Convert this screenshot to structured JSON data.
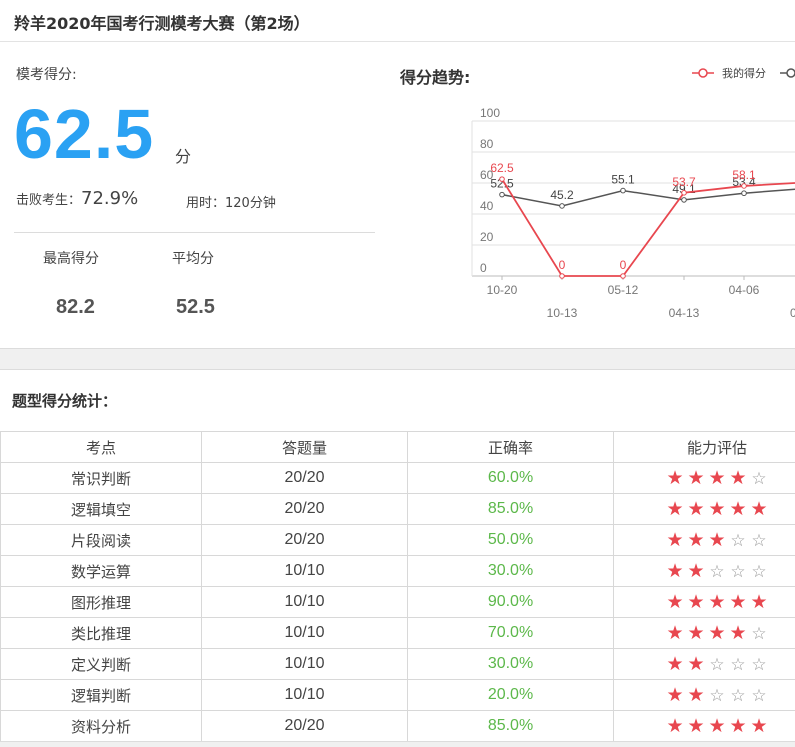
{
  "header": {
    "title": "羚羊2020年国考行测模考大赛（第2场）"
  },
  "score": {
    "label": "模考得分:",
    "value": "62.5",
    "unit": "分",
    "beat_label": "击败考生：",
    "beat_value": "72.9%",
    "time_label": "用时：120分钟"
  },
  "stats": {
    "max_label": "最高得分",
    "max_value": "82.2",
    "avg_label": "平均分",
    "avg_value": "52.5"
  },
  "trend": {
    "title": "得分趋势:",
    "legend_mine": "我的得分"
  },
  "colors": {
    "accent": "#2aa1f3",
    "mine": "#e8474f",
    "avg": "#555555",
    "good": "#5cb84a"
  },
  "chart_data": {
    "type": "line",
    "x": [
      "10-20",
      "10-13",
      "05-12",
      "04-13",
      "04-06"
    ],
    "x_extra_tick": "0",
    "ylim": [
      0,
      100
    ],
    "yticks": [
      0,
      20,
      40,
      60,
      80,
      100
    ],
    "series": [
      {
        "name": "我的得分",
        "values": [
          62.5,
          0,
          0,
          53.7,
          58.1
        ],
        "next_value": 60
      },
      {
        "values": [
          52.5,
          45.2,
          55.1,
          49.1,
          53.4
        ],
        "next_value": 56
      }
    ]
  },
  "table": {
    "title": "题型得分统计：",
    "headers": [
      "考点",
      "答题量",
      "正确率",
      "能力评估"
    ],
    "rows": [
      {
        "topic": "常识判断",
        "count": "20/20",
        "rate": "60.0%",
        "stars": 4
      },
      {
        "topic": "逻辑填空",
        "count": "20/20",
        "rate": "85.0%",
        "stars": 5
      },
      {
        "topic": "片段阅读",
        "count": "20/20",
        "rate": "50.0%",
        "stars": 3
      },
      {
        "topic": "数学运算",
        "count": "10/10",
        "rate": "30.0%",
        "stars": 2
      },
      {
        "topic": "图形推理",
        "count": "10/10",
        "rate": "90.0%",
        "stars": 5
      },
      {
        "topic": "类比推理",
        "count": "10/10",
        "rate": "70.0%",
        "stars": 4
      },
      {
        "topic": "定义判断",
        "count": "10/10",
        "rate": "30.0%",
        "stars": 2
      },
      {
        "topic": "逻辑判断",
        "count": "10/10",
        "rate": "20.0%",
        "stars": 2
      },
      {
        "topic": "资料分析",
        "count": "20/20",
        "rate": "85.0%",
        "stars": 5
      }
    ]
  }
}
